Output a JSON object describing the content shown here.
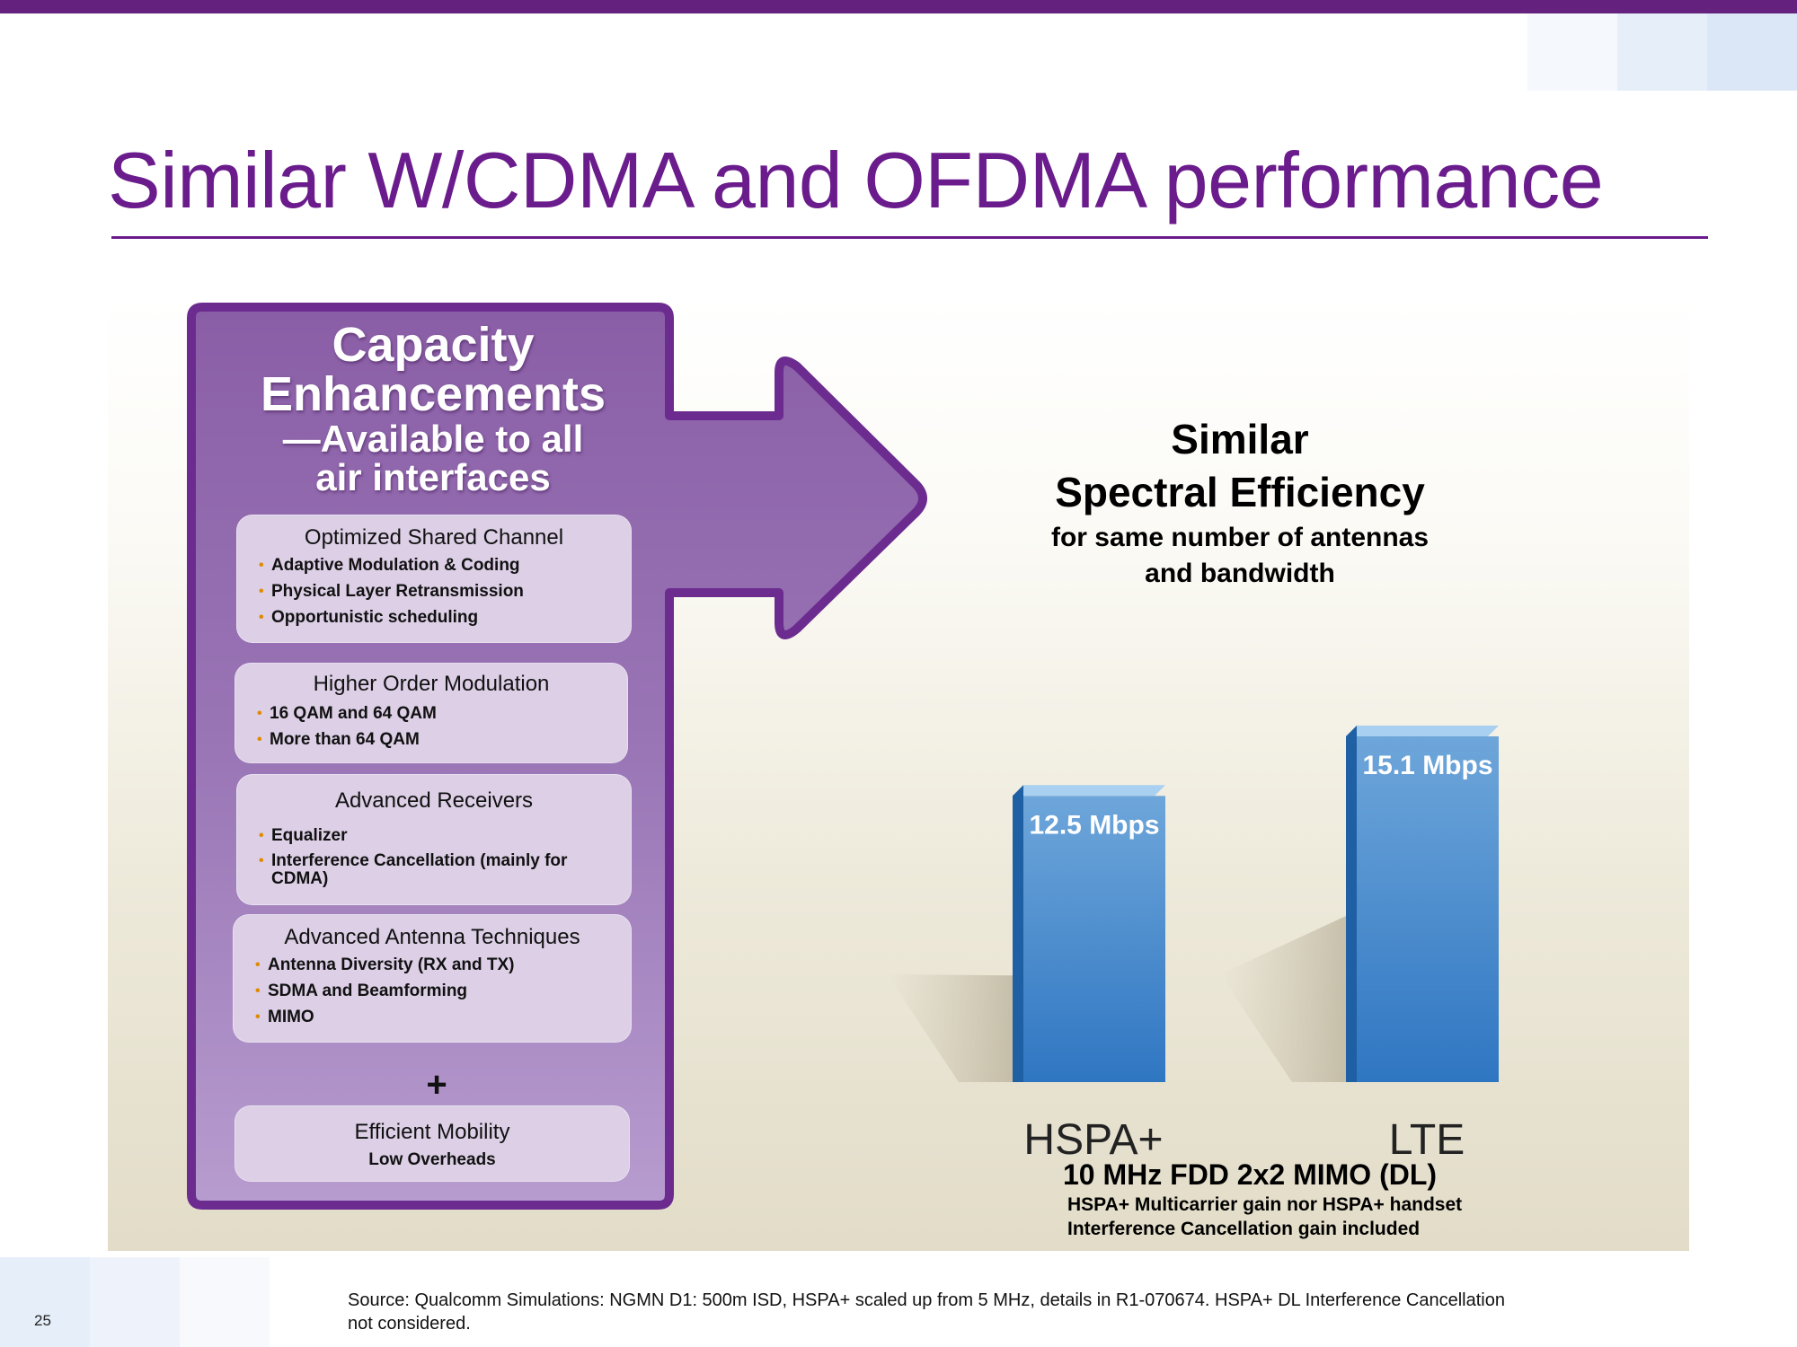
{
  "slide": {
    "title": "Similar W/CDMA and OFDMA performance",
    "page_number": "25",
    "source_line_1": "Source: Qualcomm Simulations:  NGMN D1: 500m ISD,  HSPA+ scaled up from 5 MHz, details in R1-070674. HSPA+ DL Interference Cancellation",
    "source_line_2": "not considered.",
    "colors": {
      "accent": "#64227e",
      "title": "#6a1b8c",
      "arrow": "#8f66aa",
      "bar": "#4a8fd0",
      "bullet": "#e08a00"
    }
  },
  "capacity": {
    "title_line_1": "Capacity",
    "title_line_2": "Enhancements",
    "title_line_3": "—Available to all",
    "title_line_4": "air interfaces",
    "boxes": [
      {
        "title": "Optimized Shared Channel",
        "items": [
          "Adaptive Modulation & Coding",
          "Physical Layer Retransmission",
          "Opportunistic scheduling"
        ]
      },
      {
        "title": "Higher Order Modulation",
        "items": [
          "16 QAM and 64 QAM",
          "More than 64 QAM"
        ]
      },
      {
        "title": "Advanced Receivers",
        "items": [
          "Equalizer",
          "Interference Cancellation (mainly  for CDMA)"
        ]
      },
      {
        "title": "Advanced Antenna Techniques",
        "items": [
          "Antenna Diversity (RX and TX)",
          "SDMA and Beamforming",
          "MIMO"
        ]
      }
    ],
    "plus": "+",
    "mobility": {
      "title": "Efficient Mobility",
      "subtitle": "Low Overheads"
    }
  },
  "spectral": {
    "line_1": "Similar",
    "line_2": "Spectral Efficiency",
    "line_3": "for same number of antennas",
    "line_4": "and bandwidth"
  },
  "chart_data": {
    "type": "bar",
    "categories": [
      "HSPA+",
      "LTE"
    ],
    "values": [
      12.5,
      15.1
    ],
    "value_labels": [
      "12.5 Mbps",
      "15.1 Mbps"
    ],
    "unit": "Mbps",
    "title": "",
    "xlabel": "",
    "ylabel": "",
    "ylim": [
      0,
      15.1
    ],
    "grid": false,
    "legend": "none",
    "note_title": "10 MHz FDD 2x2 MIMO (DL)",
    "note_line_1": "HSPA+ Multicarrier gain nor HSPA+  handset",
    "note_line_2": "Interference Cancellation gain included"
  }
}
